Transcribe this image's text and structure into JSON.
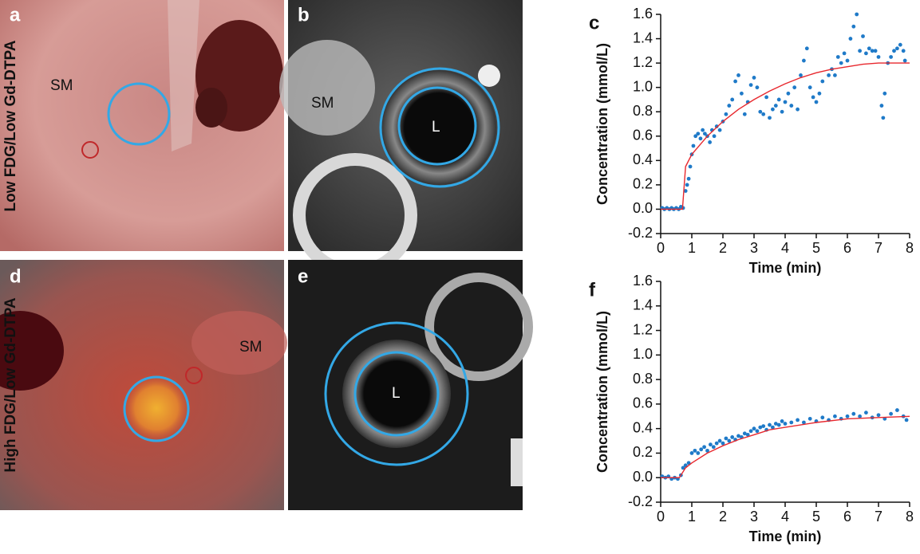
{
  "row_labels": [
    "Low FDG/Low Gd-DTPA",
    "High FDG/Low Gd-DTPA"
  ],
  "images": [
    {
      "letter": "a",
      "labels": [
        "SM"
      ]
    },
    {
      "letter": "b",
      "labels": [
        "SM",
        "L"
      ]
    },
    {
      "letter": "d",
      "labels": [
        "SM"
      ]
    },
    {
      "letter": "e",
      "labels": [
        "L"
      ]
    }
  ],
  "chart_data": [
    {
      "type": "scatter",
      "panel_label": "c",
      "x_label": "Time (min)",
      "y_label": "Concentration (mmol/L)",
      "xlim": [
        0,
        8
      ],
      "ylim": [
        -0.2,
        1.6
      ],
      "xticks": [
        0,
        1,
        2,
        3,
        4,
        5,
        6,
        7,
        8
      ],
      "yticks": [
        -0.2,
        {
          "value": 0,
          "label": "0.0"
        },
        0.2,
        0.4,
        0.6,
        0.8,
        {
          "value": 1,
          "label": "1.0"
        },
        1.2,
        1.4,
        1.6
      ],
      "points": {
        "color": "#1f7ac8",
        "x": [
          0.05,
          0.12,
          0.2,
          0.28,
          0.35,
          0.42,
          0.5,
          0.58,
          0.65,
          0.72,
          0.8,
          0.85,
          0.9,
          0.95,
          1.0,
          1.05,
          1.12,
          1.2,
          1.28,
          1.35,
          1.42,
          1.5,
          1.58,
          1.65,
          1.72,
          1.8,
          1.9,
          2.0,
          2.1,
          2.2,
          2.3,
          2.4,
          2.5,
          2.6,
          2.7,
          2.8,
          2.9,
          3.0,
          3.1,
          3.2,
          3.3,
          3.4,
          3.5,
          3.6,
          3.7,
          3.8,
          3.9,
          4.0,
          4.1,
          4.2,
          4.3,
          4.4,
          4.5,
          4.6,
          4.7,
          4.8,
          4.9,
          5.0,
          5.1,
          5.2,
          5.4,
          5.5,
          5.6,
          5.7,
          5.8,
          5.9,
          6.0,
          6.1,
          6.2,
          6.3,
          6.4,
          6.5,
          6.6,
          6.7,
          6.8,
          6.9,
          7.0,
          7.1,
          7.15,
          7.2,
          7.3,
          7.4,
          7.5,
          7.6,
          7.7,
          7.8,
          7.85
        ],
        "values": [
          0.01,
          0,
          0.01,
          0,
          0.01,
          0,
          0.01,
          0,
          0.02,
          0.01,
          0.15,
          0.2,
          0.25,
          0.35,
          0.45,
          0.52,
          0.6,
          0.62,
          0.58,
          0.65,
          0.62,
          0.6,
          0.55,
          0.65,
          0.6,
          0.68,
          0.65,
          0.72,
          0.78,
          0.85,
          0.9,
          1.05,
          1.1,
          0.95,
          0.78,
          0.88,
          1.02,
          1.08,
          1.0,
          0.8,
          0.78,
          0.92,
          0.75,
          0.82,
          0.85,
          0.9,
          0.8,
          0.88,
          0.95,
          0.85,
          1.0,
          0.82,
          1.1,
          1.22,
          1.32,
          1.0,
          0.92,
          0.88,
          0.95,
          1.05,
          1.1,
          1.15,
          1.1,
          1.25,
          1.2,
          1.28,
          1.22,
          1.4,
          1.5,
          1.6,
          1.3,
          1.42,
          1.28,
          1.32,
          1.3,
          1.3,
          1.25,
          0.85,
          0.75,
          0.95,
          1.2,
          1.25,
          1.3,
          1.32,
          1.35,
          1.3,
          1.22
        ]
      },
      "fit": {
        "color": "#e8282e",
        "x": [
          0,
          0.7,
          0.8,
          1,
          1.5,
          2,
          2.5,
          3,
          3.5,
          4,
          4.5,
          5,
          5.5,
          6,
          6.5,
          7,
          7.5,
          8
        ],
        "values": [
          0,
          0,
          0.35,
          0.45,
          0.6,
          0.72,
          0.82,
          0.9,
          0.97,
          1.03,
          1.08,
          1.12,
          1.15,
          1.17,
          1.19,
          1.2,
          1.2,
          1.2
        ]
      }
    },
    {
      "type": "scatter",
      "panel_label": "f",
      "x_label": "Time (min)",
      "y_label": "Concentration (mmol/L)",
      "xlim": [
        0,
        8
      ],
      "ylim": [
        -0.2,
        1.6
      ],
      "xticks": [
        0,
        1,
        2,
        3,
        4,
        5,
        6,
        7,
        8
      ],
      "yticks": [
        -0.2,
        {
          "value": 0,
          "label": "0.0"
        },
        0.2,
        0.4,
        0.6,
        0.8,
        {
          "value": 1,
          "label": "1.0"
        },
        1.2,
        1.4,
        1.6
      ],
      "points": {
        "color": "#1f7ac8",
        "x": [
          0.05,
          0.15,
          0.25,
          0.35,
          0.45,
          0.55,
          0.65,
          0.72,
          0.8,
          0.9,
          1.0,
          1.1,
          1.2,
          1.3,
          1.4,
          1.5,
          1.6,
          1.7,
          1.8,
          1.9,
          2.0,
          2.1,
          2.2,
          2.3,
          2.4,
          2.5,
          2.6,
          2.7,
          2.8,
          2.9,
          3.0,
          3.1,
          3.2,
          3.3,
          3.4,
          3.5,
          3.6,
          3.7,
          3.8,
          3.9,
          4.0,
          4.2,
          4.4,
          4.6,
          4.8,
          5.0,
          5.2,
          5.4,
          5.6,
          5.8,
          6.0,
          6.2,
          6.4,
          6.6,
          6.8,
          7.0,
          7.2,
          7.4,
          7.6,
          7.8,
          7.9
        ],
        "values": [
          0.01,
          0,
          0.01,
          -0.01,
          0,
          -0.01,
          0.02,
          0.08,
          0.1,
          0.12,
          0.2,
          0.22,
          0.2,
          0.23,
          0.25,
          0.22,
          0.27,
          0.25,
          0.28,
          0.3,
          0.28,
          0.32,
          0.3,
          0.33,
          0.31,
          0.34,
          0.33,
          0.36,
          0.35,
          0.38,
          0.4,
          0.38,
          0.41,
          0.42,
          0.39,
          0.43,
          0.41,
          0.44,
          0.43,
          0.46,
          0.44,
          0.45,
          0.47,
          0.45,
          0.48,
          0.46,
          0.49,
          0.47,
          0.5,
          0.48,
          0.5,
          0.52,
          0.5,
          0.53,
          0.49,
          0.51,
          0.48,
          0.52,
          0.55,
          0.5,
          0.47
        ]
      },
      "fit": {
        "color": "#e8282e",
        "x": [
          0,
          0.6,
          0.8,
          1,
          1.5,
          2,
          2.5,
          3,
          3.5,
          4,
          5,
          6,
          7,
          8
        ],
        "values": [
          0,
          0,
          0.08,
          0.12,
          0.2,
          0.26,
          0.31,
          0.35,
          0.39,
          0.41,
          0.45,
          0.48,
          0.49,
          0.5
        ]
      }
    }
  ]
}
